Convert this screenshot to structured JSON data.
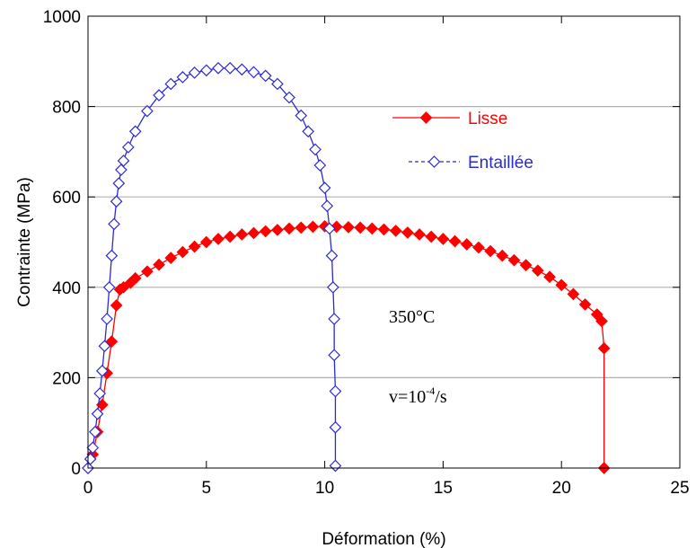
{
  "chart_data": {
    "type": "scatter",
    "xlabel": "Déformation (%)",
    "ylabel": "Contrainte (MPa)",
    "xlim": [
      0,
      25
    ],
    "ylim": [
      0,
      1000
    ],
    "xticks": [
      0,
      5,
      10,
      15,
      20,
      25
    ],
    "yticks": [
      0,
      200,
      400,
      600,
      800,
      1000
    ],
    "grid": "horizontal",
    "legend_position": "top-right",
    "annotations": [
      {
        "text": "350°C"
      },
      {
        "text": "v=10",
        "sup": "-4",
        "suffix": "/s"
      }
    ],
    "series": [
      {
        "name": "Lisse",
        "color": "#ff0000",
        "marker": "filled-diamond",
        "x": [
          0,
          0.2,
          0.4,
          0.6,
          0.8,
          1.0,
          1.2,
          1.35,
          1.5,
          1.8,
          2.0,
          2.5,
          3.0,
          3.5,
          4.0,
          4.5,
          5.0,
          5.5,
          6.0,
          6.5,
          7.0,
          7.5,
          8.0,
          8.5,
          9.0,
          9.5,
          10.0,
          10.5,
          11.0,
          11.5,
          12.0,
          12.5,
          13.0,
          13.5,
          14.0,
          14.5,
          15.0,
          15.5,
          16.0,
          16.5,
          17.0,
          17.5,
          18.0,
          18.5,
          19.0,
          19.5,
          20.0,
          20.5,
          21.0,
          21.5,
          21.7,
          21.8,
          21.8
        ],
        "y": [
          0,
          30,
          80,
          140,
          210,
          280,
          360,
          395,
          400,
          410,
          420,
          435,
          450,
          465,
          478,
          490,
          500,
          507,
          512,
          517,
          520,
          524,
          527,
          530,
          532,
          534,
          535,
          534,
          533,
          532,
          530,
          528,
          525,
          521,
          517,
          512,
          507,
          502,
          495,
          488,
          480,
          470,
          460,
          449,
          437,
          423,
          405,
          385,
          362,
          340,
          325,
          265,
          0
        ]
      },
      {
        "name": "Entaillée",
        "color": "#2b2bd6",
        "marker": "open-diamond",
        "x": [
          0,
          0.1,
          0.2,
          0.3,
          0.4,
          0.5,
          0.6,
          0.7,
          0.8,
          0.9,
          1.0,
          1.1,
          1.2,
          1.3,
          1.4,
          1.5,
          1.7,
          2.0,
          2.5,
          3.0,
          3.5,
          4.0,
          4.5,
          5.0,
          5.5,
          6.0,
          6.5,
          7.0,
          7.5,
          8.0,
          8.5,
          9.0,
          9.3,
          9.6,
          9.8,
          10.0,
          10.1,
          10.2,
          10.3,
          10.35,
          10.4,
          10.4,
          10.45,
          10.45,
          10.45
        ],
        "y": [
          0,
          20,
          45,
          80,
          120,
          165,
          215,
          270,
          330,
          400,
          470,
          540,
          590,
          630,
          660,
          680,
          710,
          745,
          790,
          825,
          850,
          865,
          875,
          880,
          885,
          885,
          882,
          876,
          868,
          850,
          820,
          780,
          745,
          705,
          670,
          620,
          580,
          530,
          470,
          400,
          330,
          250,
          170,
          90,
          5
        ]
      }
    ]
  }
}
